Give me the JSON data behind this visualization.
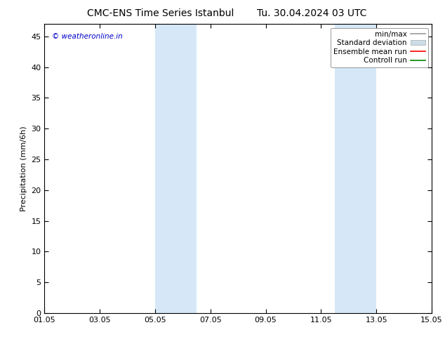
{
  "title": "CMC-ENS Time Series Istanbul",
  "title2": "Tu. 30.04.2024 03 UTC",
  "ylabel": "Precipitation (mm/6h)",
  "watermark": "© weatheronline.in",
  "watermark_color": "#0000cc",
  "xticklabels": [
    "01.05",
    "03.05",
    "05.05",
    "07.05",
    "09.05",
    "11.05",
    "13.05",
    "15.05"
  ],
  "xtick_positions": [
    0,
    2,
    4,
    6,
    8,
    10,
    12,
    14
  ],
  "xlim": [
    0,
    14
  ],
  "ylim": [
    0,
    47
  ],
  "yticks": [
    0,
    5,
    10,
    15,
    20,
    25,
    30,
    35,
    40,
    45
  ],
  "shaded_regions": [
    {
      "x_start": 4.0,
      "x_end": 5.5,
      "color": "#d6e8f7",
      "alpha": 1.0
    },
    {
      "x_start": 10.5,
      "x_end": 12.0,
      "color": "#d6e8f7",
      "alpha": 1.0
    }
  ],
  "legend_entries": [
    {
      "label": "min/max",
      "color": "#999999",
      "lw": 1.2,
      "ls": "-"
    },
    {
      "label": "Standard deviation",
      "color": "#bbccdd",
      "lw": 6,
      "ls": "-"
    },
    {
      "label": "Ensemble mean run",
      "color": "#ff0000",
      "lw": 1.2,
      "ls": "-"
    },
    {
      "label": "Controll run",
      "color": "#008800",
      "lw": 1.2,
      "ls": "-"
    }
  ],
  "bg_color": "#ffffff",
  "plot_bg_color": "#ffffff",
  "font_size": 8,
  "title_font_size": 10
}
